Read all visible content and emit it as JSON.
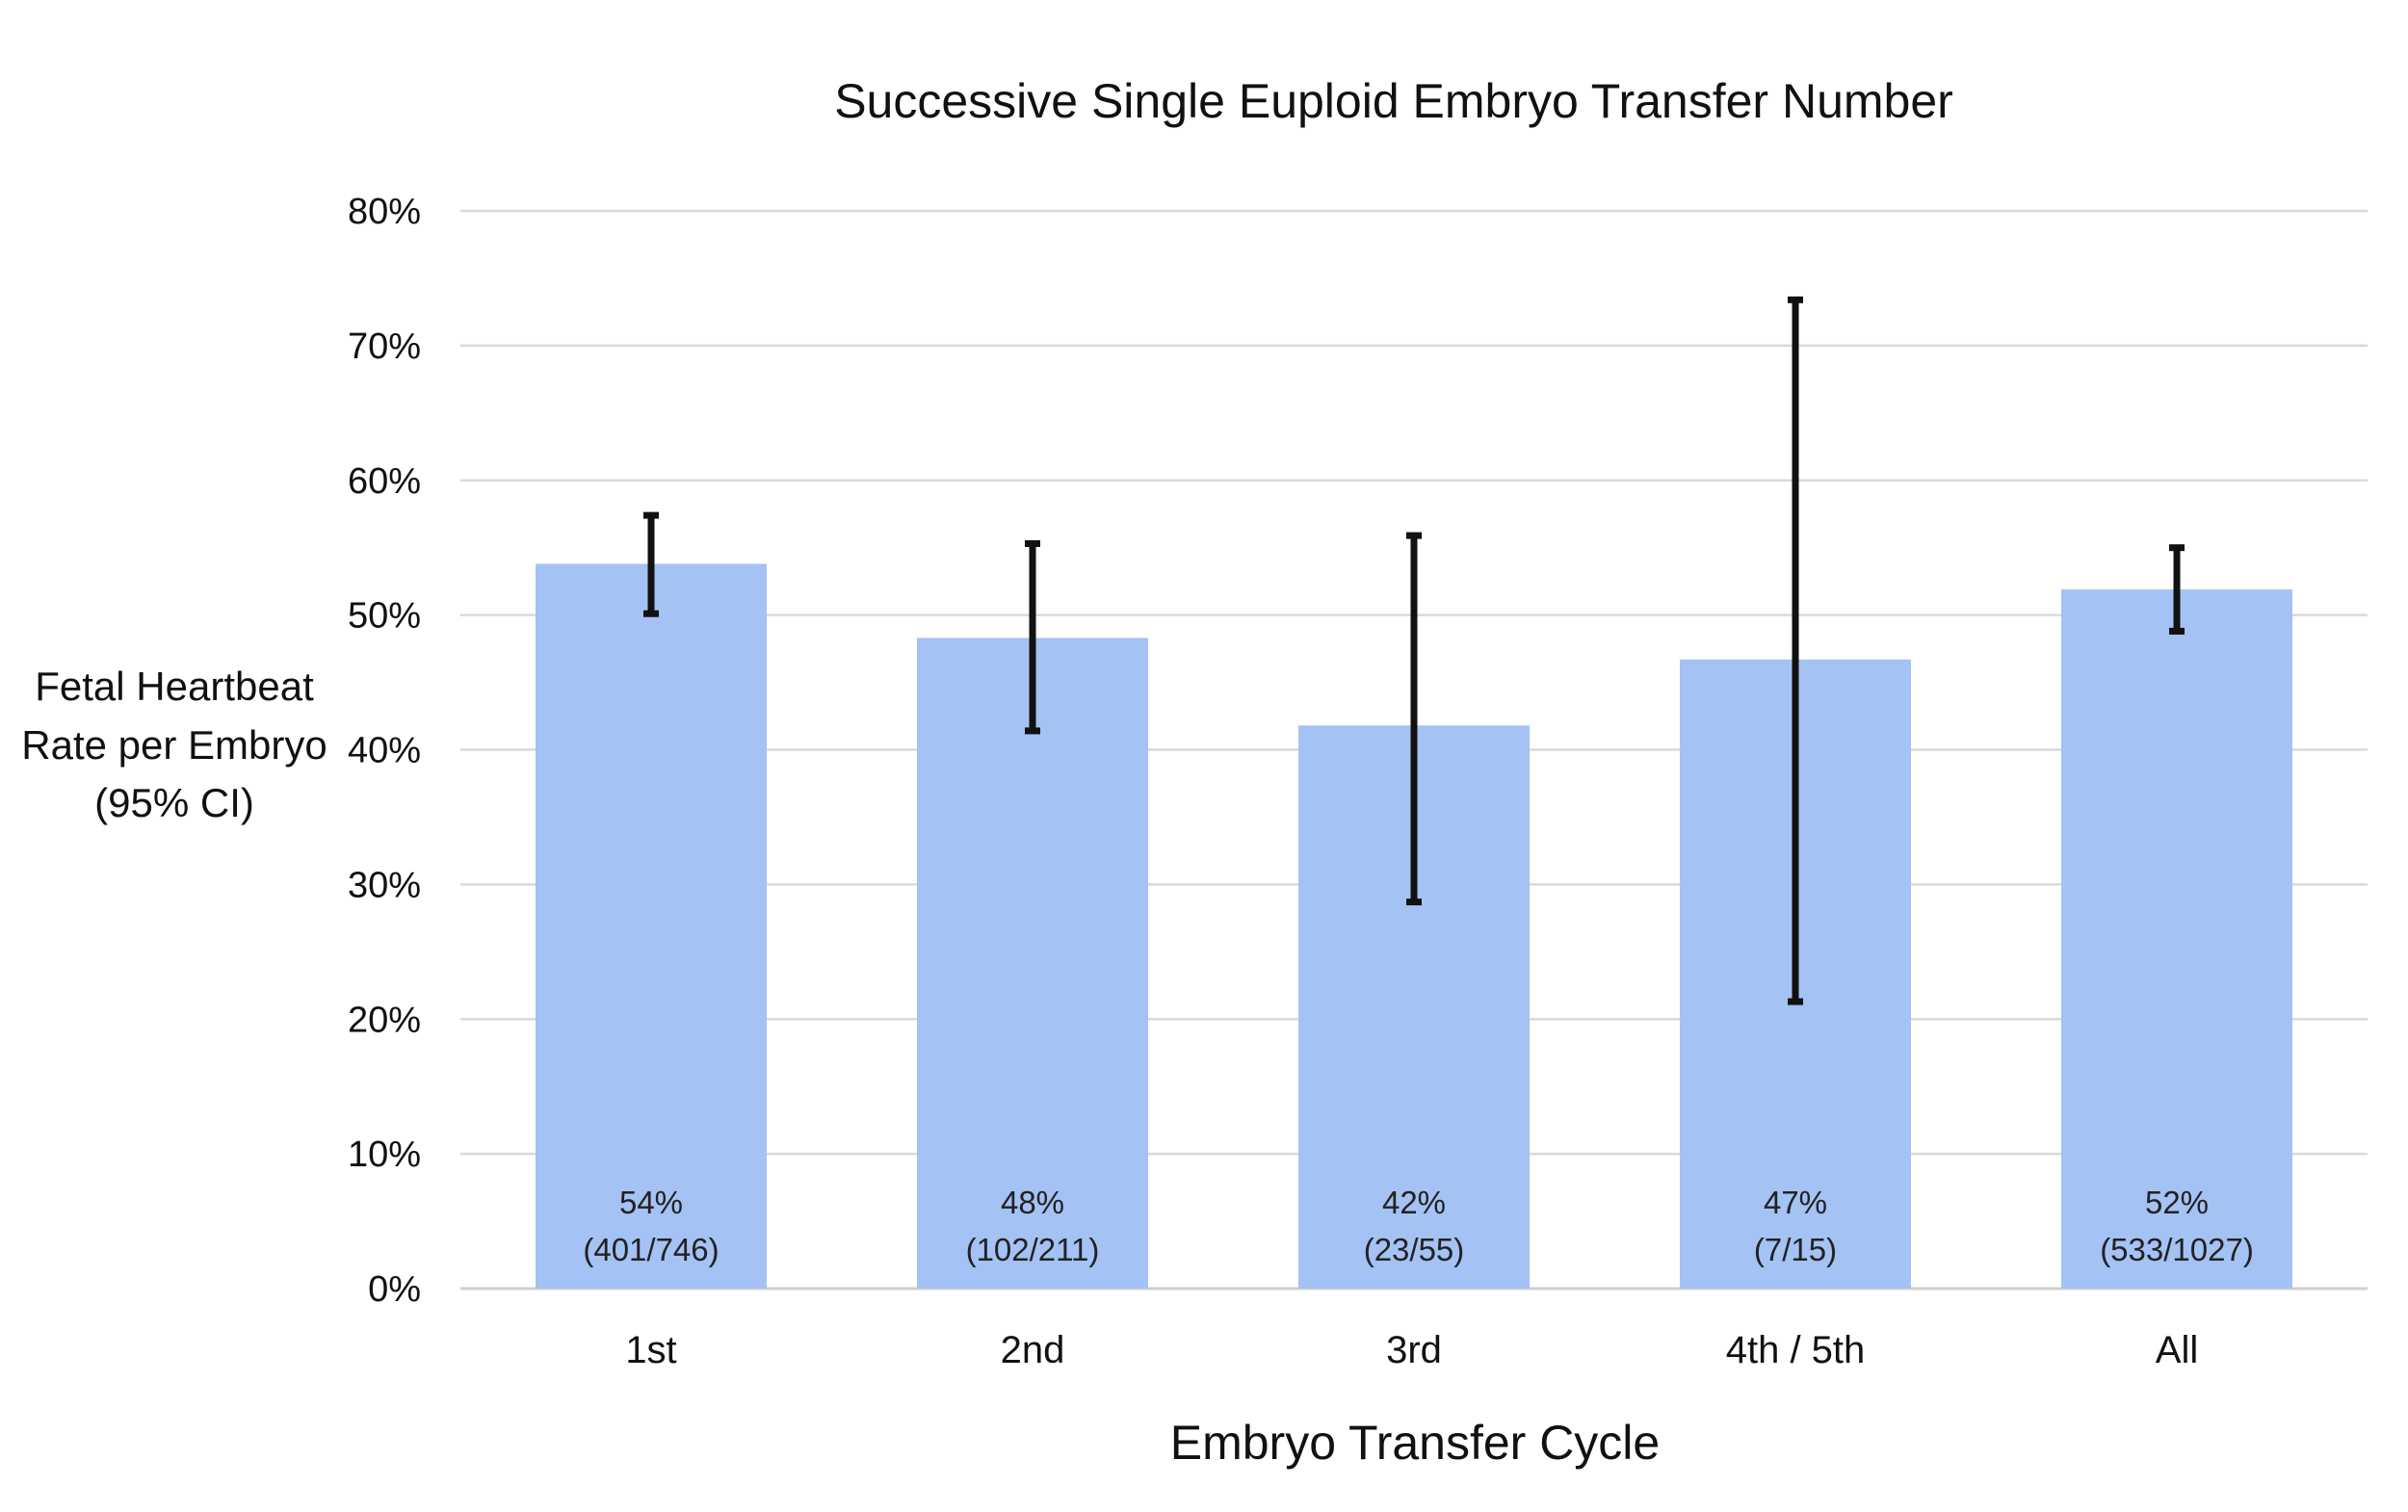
{
  "chart_data": {
    "type": "bar",
    "title": "Successive Single Euploid Embryo Transfer Number",
    "xlabel": "Embryo Transfer Cycle",
    "ylabel_lines": [
      "Fetal Heartbeat",
      "Rate per Embryo",
      "(95% CI)"
    ],
    "ylim": [
      0,
      80
    ],
    "ytick_values": [
      0,
      10,
      20,
      30,
      40,
      50,
      60,
      70,
      80
    ],
    "ytick_labels": [
      "0%",
      "10%",
      "20%",
      "30%",
      "40%",
      "50%",
      "60%",
      "70%",
      "80%"
    ],
    "grid": true,
    "legend": "none",
    "bar_color": "#a4c2f4",
    "error_bar_color": "#111111",
    "categories": [
      "1st",
      "2nd",
      "3rd",
      "4th / 5th",
      "All"
    ],
    "values": [
      53.8,
      48.3,
      41.8,
      46.7,
      51.9
    ],
    "ci_lower": [
      50.1,
      41.4,
      28.7,
      21.3,
      48.8
    ],
    "ci_upper": [
      57.4,
      55.3,
      55.9,
      73.4,
      55.0
    ],
    "bar_labels": [
      {
        "percent": "54%",
        "counts": "(401/746)"
      },
      {
        "percent": "48%",
        "counts": "(102/211)"
      },
      {
        "percent": "42%",
        "counts": "(23/55)"
      },
      {
        "percent": "47%",
        "counts": "(7/15)"
      },
      {
        "percent": "52%",
        "counts": "(533/1027)"
      }
    ]
  }
}
